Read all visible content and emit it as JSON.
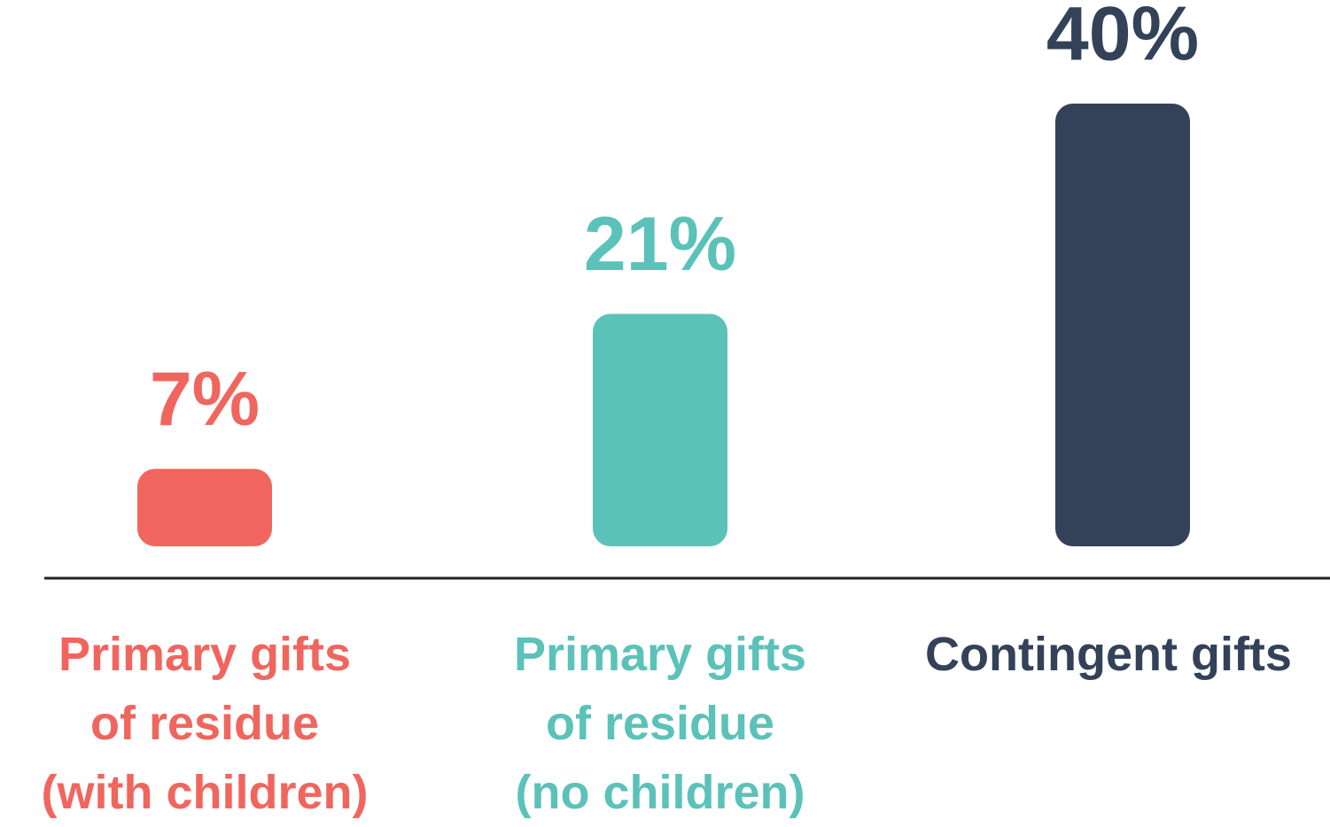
{
  "chart_data": {
    "type": "bar",
    "categories": [
      "Primary gifts\nof residue\n(with children)",
      "Primary gifts\nof residue\n(no children)",
      "Contingent gifts"
    ],
    "values": [
      7,
      21,
      40
    ],
    "value_labels": [
      "7%",
      "21%",
      "40%"
    ],
    "colors": [
      "#f0665e",
      "#5bc2b9",
      "#334159"
    ]
  }
}
